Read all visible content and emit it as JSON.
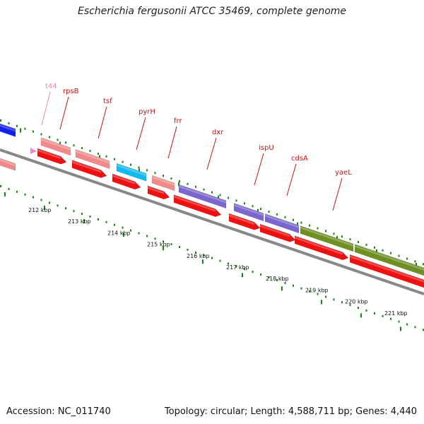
{
  "title": "Escherichia fergusonii ATCC 35469, complete genome",
  "footer": {
    "accession": "Accession: NC_011740",
    "summary": "Topology: circular; Length: 4,588,711 bp; Genes: 4,440"
  },
  "ticks": [
    {
      "label": "212 kbp"
    },
    {
      "label": "213 kbp"
    },
    {
      "label": "214 kbp"
    },
    {
      "label": "215 kbp"
    },
    {
      "label": "216 kbp"
    },
    {
      "label": "217 kbp"
    },
    {
      "label": "218 kbp"
    },
    {
      "label": "219 kbp"
    },
    {
      "label": "220 kbp"
    },
    {
      "label": "221 kbp"
    }
  ],
  "gene_labels": [
    {
      "name": "t44",
      "color": "#ee88bb"
    },
    {
      "name": "rpsB",
      "color": "#cc1111"
    },
    {
      "name": "tsf",
      "color": "#cc1111"
    },
    {
      "name": "pyrH",
      "color": "#cc1111"
    },
    {
      "name": "frr",
      "color": "#cc1111"
    },
    {
      "name": "dxr",
      "color": "#cc1111"
    },
    {
      "name": "ispU",
      "color": "#cc1111"
    },
    {
      "name": "cdsA",
      "color": "#cc1111"
    },
    {
      "name": "yaeL",
      "color": "#cc1111"
    }
  ],
  "colors": {
    "backbone": "#888888",
    "cds_arrow": "#ee1111",
    "cog_salmon": "#f08a8a",
    "cog_cyan": "#11bbee",
    "cog_purple": "#7a66cc",
    "cog_olive": "#6f8f22",
    "cog_blue": "#1122ee",
    "tick_green": "#118811",
    "trna": "#ee88cc"
  }
}
